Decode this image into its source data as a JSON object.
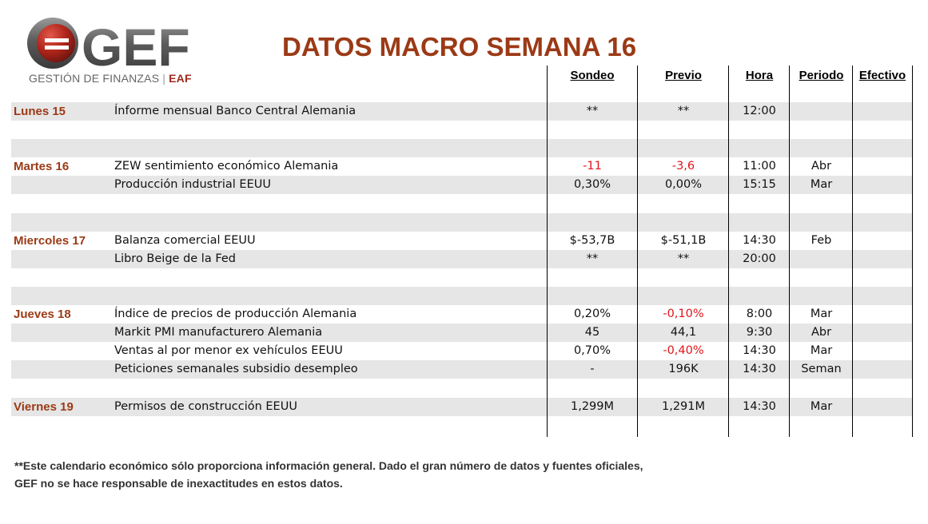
{
  "logo": {
    "brand": "GEF",
    "subtitle": "GESTIÓN DE FINANZAS",
    "suffix": "EAF"
  },
  "title": "DATOS MACRO SEMANA 16",
  "columns": {
    "sondeo": "Sondeo",
    "previo": "Previo",
    "hora": "Hora",
    "periodo": "Periodo",
    "efectivo": "Efectivo"
  },
  "rows": [
    {
      "day": "Lunes 15",
      "event": "Ínforme mensual Banco Central Alemania",
      "sondeo": "**",
      "previo": "**",
      "hora": "12:00",
      "periodo": "",
      "efectivo": ""
    },
    {
      "day": "",
      "event": "",
      "sondeo": "",
      "previo": "",
      "hora": "",
      "periodo": "",
      "efectivo": ""
    },
    {
      "day": "",
      "event": "",
      "sondeo": "",
      "previo": "",
      "hora": "",
      "periodo": "",
      "efectivo": ""
    },
    {
      "day": "Martes 16",
      "event": "ZEW sentimiento económico Alemania",
      "sondeo": "-11",
      "previo": "-3,6",
      "hora": "11:00",
      "periodo": "Abr",
      "efectivo": ""
    },
    {
      "day": "",
      "event": "Producción industrial EEUU",
      "sondeo": "0,30%",
      "previo": "0,00%",
      "hora": "15:15",
      "periodo": "Mar",
      "efectivo": ""
    },
    {
      "day": "",
      "event": "",
      "sondeo": "",
      "previo": "",
      "hora": "",
      "periodo": "",
      "efectivo": ""
    },
    {
      "day": "",
      "event": "",
      "sondeo": "",
      "previo": "",
      "hora": "",
      "periodo": "",
      "efectivo": ""
    },
    {
      "day": "Miercoles 17",
      "event": "Balanza comercial EEUU",
      "sondeo": "$-53,7B",
      "previo": "$-51,1B",
      "hora": "14:30",
      "periodo": "Feb",
      "efectivo": ""
    },
    {
      "day": "",
      "event": "Libro Beige de la Fed",
      "sondeo": "**",
      "previo": "**",
      "hora": "20:00",
      "periodo": "",
      "efectivo": ""
    },
    {
      "day": "",
      "event": "",
      "sondeo": "",
      "previo": "",
      "hora": "",
      "periodo": "",
      "efectivo": ""
    },
    {
      "day": "",
      "event": "",
      "sondeo": "",
      "previo": "",
      "hora": "",
      "periodo": "",
      "efectivo": ""
    },
    {
      "day": "Jueves 18",
      "event": "Índice de precios de producción Alemania",
      "sondeo": "0,20%",
      "previo": "-0,10%",
      "hora": "8:00",
      "periodo": "Mar",
      "efectivo": ""
    },
    {
      "day": "",
      "event": "Markit PMI manufacturero Alemania",
      "sondeo": "45",
      "previo": "44,1",
      "hora": "9:30",
      "periodo": "Abr",
      "efectivo": ""
    },
    {
      "day": "",
      "event": "Ventas al por menor ex vehículos EEUU",
      "sondeo": "0,70%",
      "previo": "-0,40%",
      "hora": "14:30",
      "periodo": "Mar",
      "efectivo": ""
    },
    {
      "day": "",
      "event": "Peticiones semanales subsidio desempleo",
      "sondeo": "-",
      "previo": "196K",
      "hora": "14:30",
      "periodo": "Seman",
      "efectivo": ""
    },
    {
      "day": "",
      "event": "",
      "sondeo": "",
      "previo": "",
      "hora": "",
      "periodo": "",
      "efectivo": ""
    },
    {
      "day": "Viernes 19",
      "event": "Permisos de construcción EEUU",
      "sondeo": "1,299M",
      "previo": "1,291M",
      "hora": "14:30",
      "periodo": "Mar",
      "efectivo": ""
    },
    {
      "day": "",
      "event": "",
      "sondeo": "",
      "previo": "",
      "hora": "",
      "periodo": "",
      "efectivo": ""
    }
  ],
  "negative_color": "#e0141a",
  "footnote": {
    "line1": "**Este calendario económico sólo proporciona información general. Dado el gran número de datos y fuentes oficiales,",
    "line2": "GEF no se hace responsable de inexactitudes en estos datos."
  }
}
